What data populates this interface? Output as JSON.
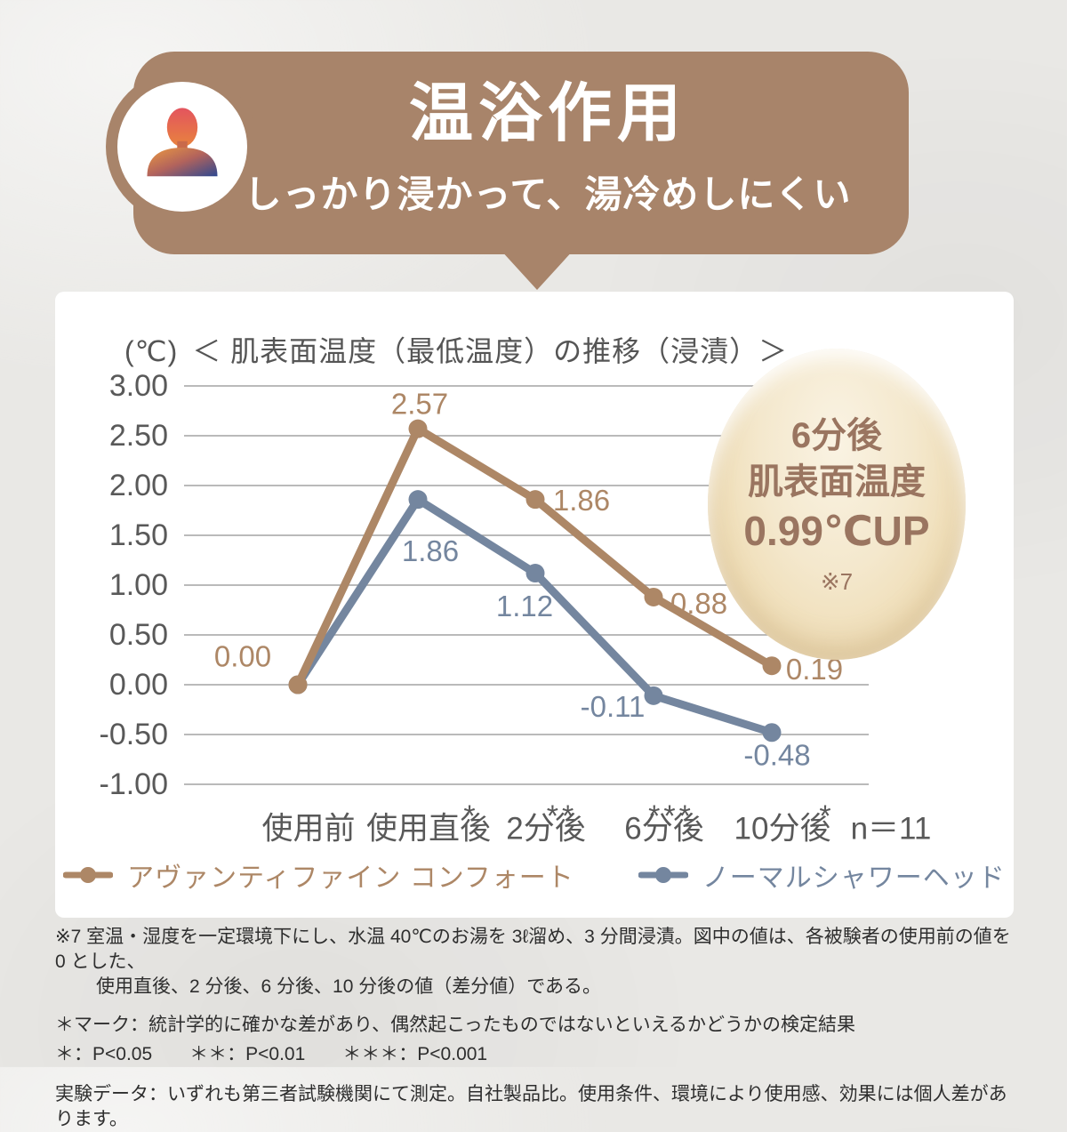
{
  "header": {
    "title": "温浴作用",
    "subtitle": "しっかり浸かって、湯冷めしにくい",
    "bubble_color": "#a8846a",
    "icon": "person-icon"
  },
  "chart_data": {
    "type": "line",
    "unit_label": "(℃)",
    "title": "＜ 肌表面温度（最低温度）の推移（浸漬）＞",
    "categories": [
      "使用前",
      "使用直後",
      "2分後",
      "6分後",
      "10分後"
    ],
    "significance": [
      "",
      "*",
      "**",
      "***",
      "*"
    ],
    "n_label": "n＝11",
    "y_ticks": [
      "3.00",
      "2.50",
      "2.00",
      "1.50",
      "1.00",
      "0.50",
      "0.00",
      "-0.50",
      "-1.00"
    ],
    "y_tick_values": [
      3.0,
      2.5,
      2.0,
      1.5,
      1.0,
      0.5,
      0.0,
      -0.5,
      -1.0
    ],
    "ylim": [
      -1.0,
      3.0
    ],
    "grid": true,
    "legend_position": "bottom",
    "axis_color": "#595959",
    "grid_color": "#a3a3a3",
    "series": [
      {
        "name": "アヴァンティファイン コンフォート",
        "color": "#ad8766",
        "values": [
          0.0,
          2.57,
          1.86,
          0.88,
          0.19
        ],
        "point_labels": [
          "0.00",
          "2.57",
          "1.86",
          "0.88",
          "0.19"
        ]
      },
      {
        "name": "ノーマルシャワーヘッド",
        "color": "#74869f",
        "values": [
          0.0,
          1.86,
          1.12,
          -0.11,
          -0.48
        ],
        "point_labels": [
          "",
          "1.86",
          "1.12",
          "-0.11",
          "-0.48"
        ]
      }
    ]
  },
  "badge": {
    "line1": "6分後",
    "line2": "肌表面温度",
    "line3": "0.99℃UP",
    "note": "※7",
    "text_color": "#9a7560"
  },
  "footnotes": {
    "note7": "※7 室温・湿度を一定環境下にし、水温 40℃のお湯を 3ℓ溜め、3 分間浸漬。図中の値は、各被験者の使用前の値を 0 とした、",
    "note7_cont": "使用直後、2 分後、6 分後、10 分後の値（差分値）である。",
    "mark_note": "＊マーク：統計学的に確かな差があり、偶然起こったものではないといえるかどうかの検定結果",
    "p_values": "＊：P<0.05　　＊＊：P<0.01　　＊＊＊：P<0.001",
    "experiment_note": "実験データ：いずれも第三者試験機関にて測定。自社製品比。使用条件、環境により使用感、効果には個人差があります。"
  }
}
